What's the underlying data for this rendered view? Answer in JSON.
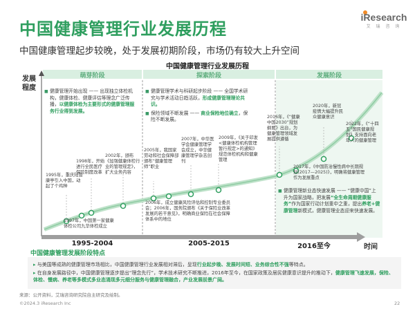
{
  "page_title": "中国健康管理行业发展历程",
  "subtitle": "中国健康管理起步较晚，处于发展初期阶段，市场仍有较大上升空间",
  "logo": {
    "name": "iResearch",
    "sub": "艾 瑞 咨 询"
  },
  "chart_title": "中国健康管理行业发展历程",
  "y_axis_title": "发展程度",
  "x_axis_title": "时间",
  "stages": [
    {
      "label": "萌芽阶段"
    },
    {
      "label": "探索阶段"
    },
    {
      "label": "发展阶段"
    }
  ],
  "periods": [
    "1995-2004",
    "2005-2015",
    "2016至今"
  ],
  "stage1_bullets": [
    {
      "plain": "健康管理开始出现 —— 出现独立体检机构，健康体检、健康评估等理念广泛传播，",
      "highlight": "以健康体检为主要形式的健康管理服务行业得到发展。"
    }
  ],
  "stage2_bullets": [
    {
      "plain": "健康管理学术与科研起步阶段 —— 全国学术研究与学术活动日趋活跃，",
      "highlight": "形成健康管理理论共识。"
    },
    {
      "plain": "保险领域不断发展 —— ",
      "highlight": "商业保险地位确立",
      "plain2": "，保险不断发展。"
    }
  ],
  "stage3_bullets": [
    {
      "plain": "健康管理新业态快速发展 —— “健康中国”上升为国家战略，把发展",
      "highlight": "“全生命周期健康服务”",
      "plain2": "作为国家行动计划重中之重，提出",
      "highlight2": "养老+健康管理",
      "plain3": "新模式，健康管理业态迎来快速发展。"
    }
  ],
  "events": {
    "e1995": "1995年，重庆陆普康亭引入中国，动起了个鸡种",
    "e1997": "1997年，中国第一家健康体检公司九华体检成立",
    "e1998": "1998年，开始进行全民医疗保险制度改革",
    "e2002": "2002年，颁布《加强健康体检行业的管理规定》，扩大业务内容",
    "e2005": "2005年，我国家劳动和社会保障部颁布“健康管理师”职业",
    "e2006": "2006年，成立健康风险评估和控制专业委员会；2006年，国务院颁布《关于保险业改革发展的若干意见》，明确商业保险在社会保障体系中的地位",
    "e2007": "2007年，中华医学会健康管理学会成立，中华健康管理学杂志创刊",
    "e2009": "2009年，《关于印发<健康体检机构管理暂行规定>的通知》规范体检机构和健康管理",
    "e2016": "2016年，《“健康中国2030”规划纲要》出台，为健康管理领域发展提供遵循",
    "e2017": "2017年，《中国防治慢性病中长期规划(2017—2025)》，明确将健康管理作为发展重点",
    "e2020": "2020年，新冠疫情大幅提升民众健康意识",
    "e2022": "2022年，《“十四五”国民健康规划》支持面向老年人的健康管理"
  },
  "features_title": "中国健康管理发展阶段特点",
  "features": [
    {
      "plain": "与美国等成熟的健康管理市场相比，中国健康管理行业发展相对滞后，呈现",
      "highlight": "行业起步晚、发展时间短、业务综合性不强",
      "plain2": "等特点。"
    },
    {
      "plain": "在自身发展路径中，中国健康管理逐步提出“理念先行”，学术技术研究不断推进，2016年至今，在国家政策及居民健康意识提升的推动下，",
      "highlight": "健康管理飞速发展，保险、体检、慢病、养老等多模式多业态涌现多元细分服务与健康管理融合，产业发展前景广阔。"
    }
  ],
  "source": "来源：公开资料，艾瑞咨询研究院自主研究及绘制。",
  "copyright": "©2024.3 iResearch Inc",
  "page_number": "22",
  "colors": {
    "accent": "#2e9e5e",
    "light_green": "#d9efe1",
    "mid_green": "#bfe2ca",
    "dark_green": "#4a9e6c"
  }
}
